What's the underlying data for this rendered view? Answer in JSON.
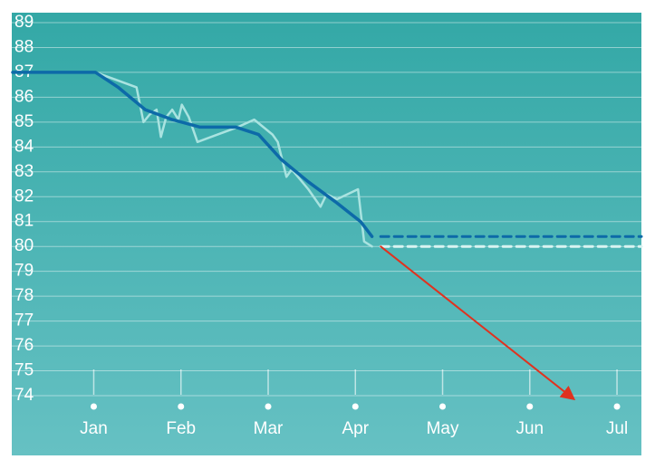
{
  "chart_data": {
    "type": "line",
    "xlim": [
      -0.94,
      6.28
    ],
    "xticks": [
      {
        "value": 0,
        "label": "Jan"
      },
      {
        "value": 1,
        "label": "Feb"
      },
      {
        "value": 2,
        "label": "Mar"
      },
      {
        "value": 3,
        "label": "Apr"
      },
      {
        "value": 4,
        "label": "May"
      },
      {
        "value": 5,
        "label": "Jun"
      },
      {
        "value": 6,
        "label": "Jul"
      }
    ],
    "ylim": [
      74,
      89
    ],
    "yticks": [
      74,
      75,
      76,
      77,
      78,
      79,
      80,
      81,
      82,
      83,
      84,
      85,
      86,
      87,
      88,
      89
    ],
    "grid": true,
    "series": [
      {
        "color": "#a9e3e0",
        "width": 2.5,
        "x": [
          -0.93,
          0.02,
          0.49,
          0.57,
          0.64,
          0.72,
          0.77,
          0.83,
          0.9,
          0.97,
          1.01,
          1.09,
          1.19,
          1.42,
          1.65,
          1.84,
          2.05,
          2.11,
          2.21,
          2.27,
          2.46,
          2.6,
          2.67,
          2.79,
          3.03,
          3.1,
          3.19
        ],
        "values": [
          87.0,
          87.0,
          86.4,
          85.0,
          85.3,
          85.5,
          84.4,
          85.2,
          85.5,
          85.1,
          85.7,
          85.2,
          84.2,
          84.5,
          84.8,
          85.1,
          84.5,
          84.2,
          82.8,
          83.1,
          82.3,
          81.6,
          82.1,
          81.9,
          82.3,
          80.2,
          80.0
        ]
      },
      {
        "color": "#0d6aa8",
        "width": 3.5,
        "x": [
          -0.93,
          0.02,
          0.28,
          0.59,
          0.9,
          1.22,
          1.63,
          1.89,
          2.15,
          2.46,
          2.77,
          3.06,
          3.19
        ],
        "values": [
          87.0,
          87.0,
          86.4,
          85.5,
          85.1,
          84.8,
          84.8,
          84.5,
          83.5,
          82.6,
          81.8,
          81.0,
          80.4
        ]
      },
      {
        "color": "#0d6aa8",
        "width": 3,
        "dashed": true,
        "x": [
          3.29,
          6.28
        ],
        "values": [
          80.4,
          80.4
        ]
      },
      {
        "color": "#d8f3f1",
        "width": 3,
        "dashed": true,
        "x": [
          3.29,
          6.28
        ],
        "values": [
          80.0,
          80.0
        ]
      }
    ],
    "arrow": {
      "color": "#e0321f",
      "x": [
        3.29,
        5.49
      ],
      "values": [
        80.0,
        73.9
      ]
    }
  }
}
